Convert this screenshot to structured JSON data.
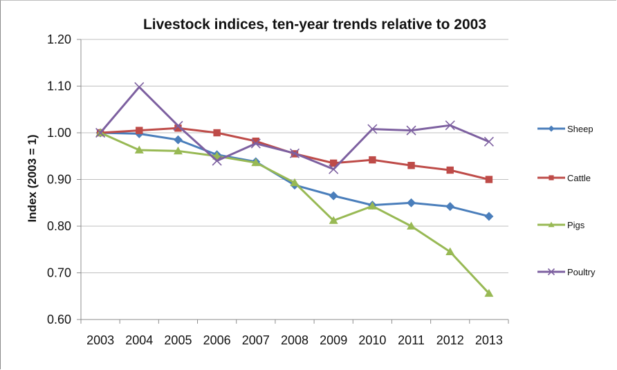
{
  "chart_data": {
    "type": "line",
    "title": "Livestock indices, ten-year trends relative to 2003",
    "ylabel": "Index (2003 = 1)",
    "xlabel": "",
    "x": [
      "2003",
      "2004",
      "2005",
      "2006",
      "2007",
      "2008",
      "2009",
      "2010",
      "2011",
      "2012",
      "2013"
    ],
    "ylim": [
      0.6,
      1.2
    ],
    "yticks": [
      "0.60",
      "0.70",
      "0.80",
      "0.90",
      "1.00",
      "1.10",
      "1.20"
    ],
    "ytick_values": [
      0.6,
      0.7,
      0.8,
      0.9,
      1.0,
      1.1,
      1.2
    ],
    "grid": true,
    "legend_position": "right",
    "series": [
      {
        "name": "Sheep",
        "color": "#4a7ebb",
        "marker": "diamond",
        "values": [
          1.0,
          0.998,
          0.985,
          0.953,
          0.938,
          0.888,
          0.865,
          0.845,
          0.85,
          0.842,
          0.821
        ]
      },
      {
        "name": "Cattle",
        "color": "#be4b48",
        "marker": "square",
        "values": [
          1.0,
          1.005,
          1.01,
          1.0,
          0.982,
          0.955,
          0.935,
          0.942,
          0.93,
          0.92,
          0.9
        ]
      },
      {
        "name": "Pigs",
        "color": "#98b954",
        "marker": "triangle",
        "values": [
          1.0,
          0.963,
          0.961,
          0.95,
          0.936,
          0.893,
          0.812,
          0.843,
          0.8,
          0.745,
          0.656
        ]
      },
      {
        "name": "Poultry",
        "color": "#7d60a0",
        "marker": "x",
        "values": [
          1.0,
          1.098,
          1.015,
          0.94,
          0.977,
          0.956,
          0.922,
          1.008,
          1.005,
          1.016,
          0.981
        ]
      }
    ]
  }
}
